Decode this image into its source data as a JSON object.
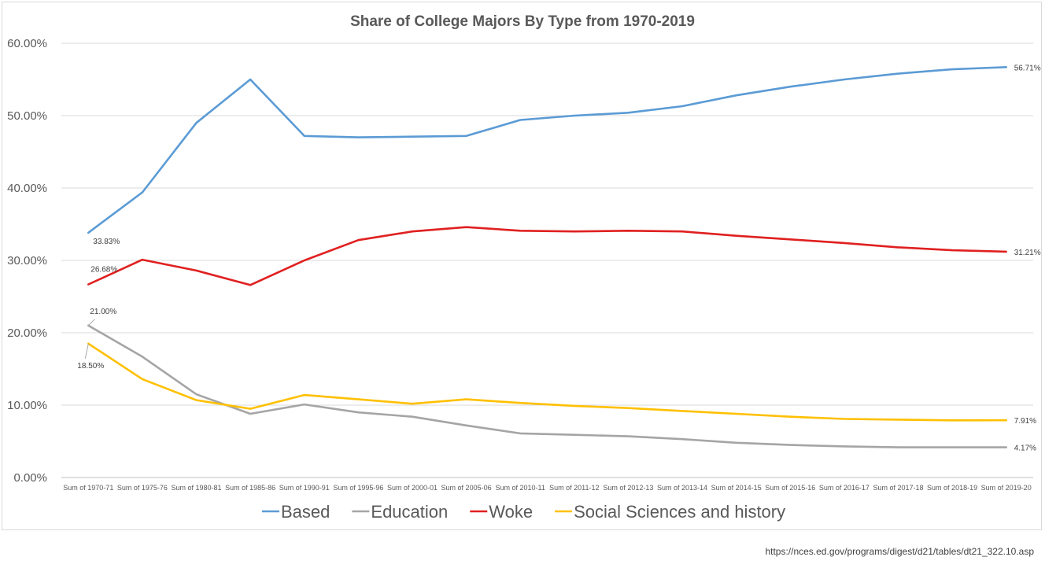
{
  "source_note": "https://nces.ed.gov/programs/digest/d21/tables/dt21_322.10.asp",
  "chart_data": {
    "type": "line",
    "title": "Share of College Majors By Type from 1970-2019",
    "xlabel": "",
    "ylabel": "",
    "ylim": [
      0,
      60
    ],
    "yticks": [
      "0.00%",
      "10.00%",
      "20.00%",
      "30.00%",
      "40.00%",
      "50.00%",
      "60.00%"
    ],
    "ytick_values": [
      0,
      10,
      20,
      30,
      40,
      50,
      60
    ],
    "grid": true,
    "legend_position": "bottom",
    "categories": [
      "Sum of 1970-71",
      "Sum of 1975-76",
      "Sum of 1980-81",
      "Sum of 1985-86",
      "Sum of 1990-91",
      "Sum of 1995-96",
      "Sum of 2000-01",
      "Sum of 2005-06",
      "Sum of 2010-11",
      "Sum of 2011-12",
      "Sum of 2012-13",
      "Sum of 2013-14",
      "Sum of 2014-15",
      "Sum of 2015-16",
      "Sum of 2016-17",
      "Sum of 2017-18",
      "Sum of 2018-19",
      "Sum of 2019-20"
    ],
    "series": [
      {
        "name": "Based",
        "color": "#5b9bd5",
        "values": [
          33.83,
          39.4,
          49.0,
          55.0,
          47.2,
          47.0,
          47.1,
          47.2,
          49.4,
          50.0,
          50.4,
          51.3,
          52.8,
          54.0,
          55.0,
          55.8,
          56.4,
          56.71
        ],
        "labels": [
          {
            "index": 0,
            "text": "33.83%"
          },
          {
            "index": 17,
            "text": "56.71%"
          }
        ]
      },
      {
        "name": "Education",
        "color": "#a5a5a5",
        "values": [
          21.0,
          16.7,
          11.5,
          8.8,
          10.1,
          9.0,
          8.4,
          7.2,
          6.1,
          5.9,
          5.7,
          5.3,
          4.8,
          4.5,
          4.3,
          4.17,
          4.17,
          4.17
        ],
        "labels": [
          {
            "index": 0,
            "text": "21.00%"
          },
          {
            "index": 17,
            "text": "4.17%"
          }
        ]
      },
      {
        "name": "Woke",
        "color": "#e02020",
        "values": [
          26.68,
          30.1,
          28.6,
          26.6,
          30.0,
          32.8,
          34.0,
          34.6,
          34.1,
          34.0,
          34.1,
          34.0,
          33.4,
          32.9,
          32.4,
          31.8,
          31.4,
          31.21
        ],
        "labels": [
          {
            "index": 0,
            "text": "26.68%"
          },
          {
            "index": 17,
            "text": "31.21%"
          }
        ]
      },
      {
        "name": "Social Sciences and history",
        "color": "#ffc000",
        "values": [
          18.5,
          13.6,
          10.7,
          9.5,
          11.4,
          10.8,
          10.2,
          10.8,
          10.3,
          9.9,
          9.6,
          9.2,
          8.8,
          8.4,
          8.1,
          8.0,
          7.9,
          7.91
        ],
        "labels": [
          {
            "index": 0,
            "text": "18.50%"
          },
          {
            "index": 17,
            "text": "7.91%"
          }
        ]
      }
    ]
  }
}
